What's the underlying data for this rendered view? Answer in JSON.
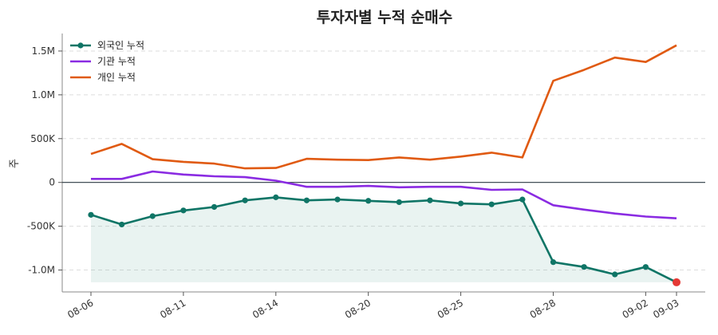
{
  "chart_data": {
    "type": "line",
    "title": "투자자별 누적 순매수",
    "ylabel": "주",
    "xlabel": "",
    "ylim": [
      -1250000,
      1700000
    ],
    "yticks": [
      {
        "value": 1500000,
        "label": "1.5M"
      },
      {
        "value": 1000000,
        "label": "1.0M"
      },
      {
        "value": 500000,
        "label": "500K"
      },
      {
        "value": 0,
        "label": "0"
      },
      {
        "value": -500000,
        "label": "-500K"
      },
      {
        "value": -1000000,
        "label": "-1.0M"
      }
    ],
    "x": [
      "08-06",
      "08-07",
      "08-08",
      "08-11",
      "08-12",
      "08-13",
      "08-14",
      "08-18",
      "08-19",
      "08-20",
      "08-21",
      "08-22",
      "08-25",
      "08-26",
      "08-27",
      "08-28",
      "08-29",
      "09-01",
      "09-02",
      "09-03"
    ],
    "xticks": [
      "08-06",
      "08-11",
      "08-14",
      "08-20",
      "08-25",
      "08-28",
      "09-02",
      "09-03"
    ],
    "grid": "horizontal dashed",
    "legend": "top-left",
    "series": [
      {
        "name": "외국인 누적",
        "color": "#0f7566",
        "marker": "circle",
        "values": [
          -370000,
          -480000,
          -385000,
          -320000,
          -280000,
          -205000,
          -170000,
          -205000,
          -195000,
          -210000,
          -225000,
          -205000,
          -240000,
          -250000,
          -195000,
          -910000,
          -965000,
          -1050000,
          -965000,
          -1140000
        ]
      },
      {
        "name": "기관 누적",
        "color": "#8a2be2",
        "marker": "none",
        "values": [
          40000,
          40000,
          125000,
          90000,
          70000,
          60000,
          20000,
          -50000,
          -50000,
          -40000,
          -55000,
          -50000,
          -50000,
          -85000,
          -80000,
          -260000,
          -310000,
          -355000,
          -390000,
          -410000
        ]
      },
      {
        "name": "개인 누적",
        "color": "#e05a12",
        "marker": "none",
        "values": [
          325000,
          440000,
          265000,
          235000,
          215000,
          160000,
          165000,
          270000,
          260000,
          255000,
          285000,
          260000,
          295000,
          340000,
          285000,
          1160000,
          1285000,
          1425000,
          1375000,
          1565000
        ]
      }
    ],
    "highlight_last_point_color": "#e53935",
    "fill_series": "외국인 누적",
    "fill_color": "#0f7566"
  }
}
